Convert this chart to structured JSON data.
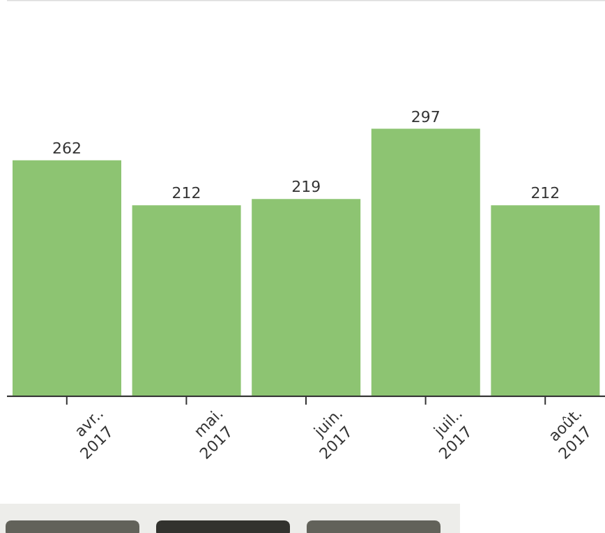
{
  "chart_data": {
    "type": "bar",
    "categories": [
      "avr.. 2017",
      "mai. 2017",
      "juin. 2017",
      "juil.. 2017",
      "août. 2017"
    ],
    "values": [
      262,
      212,
      219,
      297,
      212
    ],
    "color": "#8dc472",
    "data_labels": true,
    "ylim": [
      0,
      440
    ],
    "grid": "y",
    "tick_labels": "x"
  }
}
